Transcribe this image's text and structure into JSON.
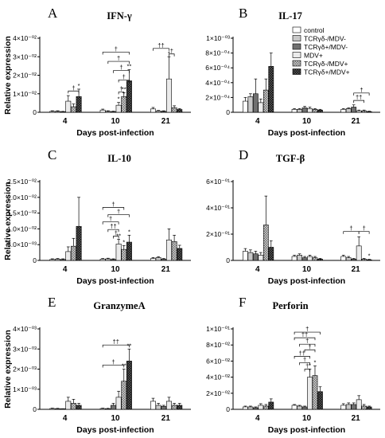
{
  "x_axis_label": "Days post-infection",
  "y_axis_label": "Relative expression",
  "legend": {
    "entries": [
      {
        "label": "control",
        "fill": "#ffffff",
        "pattern": "solid"
      },
      {
        "label": "TCRγδ-/MDV-",
        "fill": "#c8c8c8",
        "pattern": "solid"
      },
      {
        "label": "TCRγδ+/MDV-",
        "fill": "#707070",
        "pattern": "solid"
      },
      {
        "label": "MDV+",
        "fill": "#ebebeb",
        "pattern": "solid"
      },
      {
        "label": "TCRγδ-/MDV+",
        "fill": "#b4b4b4",
        "pattern": "checker"
      },
      {
        "label": "TCRγδ+/MDV+",
        "fill": "#202020",
        "pattern": "checker"
      }
    ]
  },
  "chart_data": [
    {
      "type": "bar",
      "panel": "A",
      "title": "IFN-γ",
      "categories": [
        "4",
        "10",
        "21"
      ],
      "ylim": [
        0,
        0.04
      ],
      "yticks": [
        "0",
        "1×10⁻⁰²",
        "2×10⁻⁰²",
        "3×10⁻⁰²",
        "4×10⁻⁰²"
      ],
      "series": [
        {
          "name": "control",
          "values": [
            0.0005,
            0.0012,
            0.0018
          ],
          "errors": [
            0.0003,
            0.0005,
            0.0008
          ]
        },
        {
          "name": "TCRγδ-/MDV-",
          "values": [
            0.0005,
            0.0005,
            0.0007
          ],
          "errors": [
            0.0003,
            0.0003,
            0.0003
          ]
        },
        {
          "name": "TCRγδ+/MDV-",
          "values": [
            0.0003,
            0.0004,
            0.0005
          ],
          "errors": [
            0.0002,
            0.0002,
            0.0003
          ]
        },
        {
          "name": "MDV+",
          "values": [
            0.006,
            0.0038,
            0.018
          ],
          "errors": [
            0.003,
            0.0015,
            0.012
          ]
        },
        {
          "name": "TCRγδ-/MDV+",
          "values": [
            0.003,
            0.0085,
            0.0025
          ],
          "errors": [
            0.0015,
            0.002,
            0.001
          ]
        },
        {
          "name": "TCRγδ+/MDV+",
          "values": [
            0.0085,
            0.017,
            0.0015
          ],
          "errors": [
            0.004,
            0.006,
            0.0005
          ]
        }
      ],
      "stars": [
        [
          "",
          "",
          ""
        ],
        [
          "",
          "",
          ""
        ],
        [
          "",
          "",
          ""
        ],
        [
          "",
          "*",
          "*"
        ],
        [
          "",
          "**",
          ""
        ],
        [
          "*",
          "**",
          ""
        ]
      ],
      "brackets": [
        {
          "g": 0,
          "from": 3,
          "to": 5,
          "level": 0.0115,
          "label": "†"
        },
        {
          "g": 1,
          "from": 0,
          "to": 5,
          "level": 0.0325,
          "label": "†"
        },
        {
          "g": 1,
          "from": 1,
          "to": 5,
          "level": 0.0275,
          "label": "†"
        },
        {
          "g": 1,
          "from": 2,
          "to": 5,
          "level": 0.0225,
          "label": "†"
        },
        {
          "g": 1,
          "from": 3,
          "to": 5,
          "level": 0.0175,
          "label": "†"
        },
        {
          "g": 1,
          "from": 3,
          "to": 4,
          "level": 0.011,
          "label": "†"
        },
        {
          "g": 2,
          "from": 0,
          "to": 3,
          "level": 0.0345,
          "label": "††"
        },
        {
          "g": 2,
          "from": 3,
          "to": 4,
          "level": 0.0315,
          "label": "†"
        }
      ]
    },
    {
      "type": "bar",
      "panel": "B",
      "title": "IL-17",
      "categories": [
        "4",
        "10",
        "21"
      ],
      "ylim": [
        0,
        0.001
      ],
      "yticks": [
        "0",
        "2×10⁻⁰⁴",
        "4×10⁻⁰⁴",
        "6×10⁻⁰⁴",
        "8×10⁻⁰⁴",
        "1×10⁻⁰³"
      ],
      "series": [
        {
          "name": "control",
          "values": [
            0.00015,
            4e-05,
            4e-05
          ],
          "errors": [
            5e-05,
            1e-05,
            1e-05
          ]
        },
        {
          "name": "TCRγδ-/MDV-",
          "values": [
            0.00021,
            4e-05,
            5e-05
          ],
          "errors": [
            4e-05,
            1e-05,
            1e-05
          ]
        },
        {
          "name": "TCRγδ+/MDV-",
          "values": [
            0.00025,
            6e-05,
            7e-05
          ],
          "errors": [
            0.0002,
            2e-05,
            3e-05
          ]
        },
        {
          "name": "MDV+",
          "values": [
            0.00013,
            5e-05,
            2e-05
          ],
          "errors": [
            5e-05,
            2e-05,
            1e-05
          ]
        },
        {
          "name": "TCRγδ-/MDV+",
          "values": [
            0.0003,
            4e-05,
            2e-05
          ],
          "errors": [
            0.00015,
            1e-05,
            1e-05
          ]
        },
        {
          "name": "TCRγδ+/MDV+",
          "values": [
            0.00062,
            3e-05,
            1e-05
          ],
          "errors": [
            0.00018,
            1e-05,
            5e-06
          ]
        }
      ],
      "stars": [
        [
          "",
          "",
          ""
        ],
        [
          "",
          "",
          ""
        ],
        [
          "",
          "",
          ""
        ],
        [
          "",
          "",
          ""
        ],
        [
          "",
          "",
          ""
        ],
        [
          "",
          "",
          ""
        ]
      ],
      "brackets": [
        {
          "g": 2,
          "from": 2,
          "to": 5,
          "level": 0.00026,
          "label": "†"
        },
        {
          "g": 2,
          "from": 2,
          "to": 4,
          "level": 0.00016,
          "label": "††"
        }
      ]
    },
    {
      "type": "bar",
      "panel": "C",
      "title": "IL-10",
      "categories": [
        "4",
        "10",
        "21"
      ],
      "ylim": [
        0,
        0.025
      ],
      "yticks": [
        "0",
        "5.0×10⁻⁰³",
        "1.0×10⁻⁰²",
        "1.5×10⁻⁰²",
        "2.0×10⁻⁰²",
        "2.5×10⁻⁰²"
      ],
      "series": [
        {
          "name": "control",
          "values": [
            0.0003,
            0.0004,
            0.0006
          ],
          "errors": [
            0.0002,
            0.0002,
            0.0003
          ]
        },
        {
          "name": "TCRγδ-/MDV-",
          "values": [
            0.0004,
            0.0005,
            0.0009
          ],
          "errors": [
            0.0002,
            0.0002,
            0.0003
          ]
        },
        {
          "name": "TCRγδ+/MDV-",
          "values": [
            0.0003,
            0.0003,
            0.0004
          ],
          "errors": [
            0.0002,
            0.0002,
            0.0002
          ]
        },
        {
          "name": "MDV+",
          "values": [
            0.0028,
            0.0052,
            0.0065
          ],
          "errors": [
            0.0015,
            0.0015,
            0.0035
          ]
        },
        {
          "name": "TCRγδ-/MDV+",
          "values": [
            0.0045,
            0.0035,
            0.006
          ],
          "errors": [
            0.0025,
            0.0012,
            0.002
          ]
        },
        {
          "name": "TCRγδ+/MDV+",
          "values": [
            0.0108,
            0.0058,
            0.0038
          ],
          "errors": [
            0.0092,
            0.0022,
            0.001
          ]
        }
      ],
      "stars": [
        [
          "",
          "",
          ""
        ],
        [
          "",
          "",
          ""
        ],
        [
          "",
          "",
          ""
        ],
        [
          "",
          "**",
          ""
        ],
        [
          "",
          "*",
          ""
        ],
        [
          "",
          "*",
          ""
        ]
      ],
      "brackets": [
        {
          "g": 1,
          "from": 0,
          "to": 4,
          "level": 0.0168,
          "label": "†"
        },
        {
          "g": 1,
          "from": 1,
          "to": 5,
          "level": 0.0145,
          "label": "†"
        },
        {
          "g": 1,
          "from": 0,
          "to": 3,
          "level": 0.0122,
          "label": "†"
        },
        {
          "g": 1,
          "from": 1,
          "to": 3,
          "level": 0.0098,
          "label": "††"
        },
        {
          "g": 1,
          "from": 2,
          "to": 3,
          "level": 0.0077,
          "label": "†"
        }
      ]
    },
    {
      "type": "bar",
      "panel": "D",
      "title": "TGF-β",
      "categories": [
        "4",
        "10",
        "21"
      ],
      "ylim": [
        0,
        0.6
      ],
      "yticks": [
        "0",
        "2×10⁻⁰¹",
        "4×10⁻⁰¹",
        "6×10⁻⁰¹"
      ],
      "series": [
        {
          "name": "control",
          "values": [
            0.07,
            0.03,
            0.03
          ],
          "errors": [
            0.02,
            0.01,
            0.01
          ]
        },
        {
          "name": "TCRγδ-/MDV-",
          "values": [
            0.06,
            0.04,
            0.02
          ],
          "errors": [
            0.02,
            0.01,
            0.01
          ]
        },
        {
          "name": "TCRγδ+/MDV-",
          "values": [
            0.05,
            0.02,
            0.01
          ],
          "errors": [
            0.02,
            0.01,
            0.005
          ]
        },
        {
          "name": "MDV+",
          "values": [
            0.04,
            0.03,
            0.11
          ],
          "errors": [
            0.02,
            0.01,
            0.07
          ]
        },
        {
          "name": "TCRγδ-/MDV+",
          "values": [
            0.27,
            0.02,
            0.01
          ],
          "errors": [
            0.22,
            0.01,
            0.005
          ]
        },
        {
          "name": "TCRγδ+/MDV+",
          "values": [
            0.1,
            0.01,
            0.005
          ],
          "errors": [
            0.05,
            0.005,
            0.003
          ]
        }
      ],
      "stars": [
        [
          "",
          "",
          ""
        ],
        [
          "",
          "",
          ""
        ],
        [
          "",
          "",
          ""
        ],
        [
          "",
          "",
          ""
        ],
        [
          "",
          "",
          ""
        ],
        [
          "",
          "",
          "*"
        ]
      ],
      "brackets": [
        {
          "g": 2,
          "from": 0,
          "to": 3,
          "level": 0.22,
          "label": "†"
        },
        {
          "g": 2,
          "from": 3,
          "to": 5,
          "level": 0.22,
          "label": "†"
        }
      ]
    },
    {
      "type": "bar",
      "panel": "E",
      "title": "GranzymeA",
      "categories": [
        "4",
        "10",
        "21"
      ],
      "ylim": [
        0,
        0.004
      ],
      "yticks": [
        "0",
        "1×10⁻⁰³",
        "2×10⁻⁰³",
        "3×10⁻⁰³",
        "4×10⁻⁰³"
      ],
      "series": [
        {
          "name": "control",
          "values": [
            4e-05,
            4e-05,
            0.0004
          ],
          "errors": [
            2e-05,
            2e-05,
            0.00015
          ]
        },
        {
          "name": "TCRγδ-/MDV-",
          "values": [
            3e-05,
            3e-05,
            0.0002
          ],
          "errors": [
            2e-05,
            2e-05,
            0.0001
          ]
        },
        {
          "name": "TCRγδ+/MDV-",
          "values": [
            2e-05,
            0.0002,
            0.00015
          ],
          "errors": [
            1e-05,
            0.0001,
            5e-05
          ]
        },
        {
          "name": "MDV+",
          "values": [
            0.0004,
            0.0006,
            0.0004
          ],
          "errors": [
            0.0002,
            0.0003,
            0.0002
          ]
        },
        {
          "name": "TCRγδ-/MDV+",
          "values": [
            0.0003,
            0.0014,
            0.0002
          ],
          "errors": [
            0.0002,
            0.0006,
            0.0001
          ]
        },
        {
          "name": "TCRγδ+/MDV+",
          "values": [
            0.0002,
            0.0024,
            0.0002
          ],
          "errors": [
            0.0001,
            0.0006,
            0.0001
          ]
        }
      ],
      "stars": [
        [
          "",
          "",
          ""
        ],
        [
          "",
          "",
          ""
        ],
        [
          "",
          "",
          ""
        ],
        [
          "",
          "",
          ""
        ],
        [
          "",
          "**",
          ""
        ],
        [
          "",
          "**",
          ""
        ]
      ],
      "brackets": [
        {
          "g": 1,
          "from": 0,
          "to": 5,
          "level": 0.0032,
          "label": "††"
        },
        {
          "g": 1,
          "from": 0,
          "to": 4,
          "level": 0.0022,
          "label": "†"
        }
      ]
    },
    {
      "type": "bar",
      "panel": "F",
      "title": "Perforin",
      "categories": [
        "4",
        "10",
        "21"
      ],
      "ylim": [
        0,
        0.1
      ],
      "yticks": [
        "0",
        "2×10⁻⁰²",
        "4×10⁻⁰²",
        "6×10⁻⁰²",
        "8×10⁻⁰²",
        "1×10⁻⁰¹"
      ],
      "series": [
        {
          "name": "control",
          "values": [
            0.003,
            0.005,
            0.005
          ],
          "errors": [
            0.001,
            0.001,
            0.002
          ]
        },
        {
          "name": "TCRγδ-/MDV-",
          "values": [
            0.003,
            0.004,
            0.006
          ],
          "errors": [
            0.001,
            0.001,
            0.002
          ]
        },
        {
          "name": "TCRγδ+/MDV-",
          "values": [
            0.002,
            0.003,
            0.006
          ],
          "errors": [
            0.001,
            0.001,
            0.002
          ]
        },
        {
          "name": "MDV+",
          "values": [
            0.005,
            0.04,
            0.012
          ],
          "errors": [
            0.002,
            0.01,
            0.005
          ]
        },
        {
          "name": "TCRγδ-/MDV+",
          "values": [
            0.004,
            0.042,
            0.004
          ],
          "errors": [
            0.002,
            0.012,
            0.002
          ]
        },
        {
          "name": "TCRγδ+/MDV+",
          "values": [
            0.009,
            0.022,
            0.003
          ],
          "errors": [
            0.004,
            0.006,
            0.001
          ]
        }
      ],
      "stars": [
        [
          "",
          "",
          ""
        ],
        [
          "",
          "",
          ""
        ],
        [
          "",
          "",
          ""
        ],
        [
          "",
          "*",
          ""
        ],
        [
          "",
          "*",
          ""
        ],
        [
          "",
          "",
          ""
        ]
      ],
      "brackets": [
        {
          "g": 1,
          "from": 0,
          "to": 5,
          "level": 0.096,
          "label": "†"
        },
        {
          "g": 1,
          "from": 0,
          "to": 4,
          "level": 0.089,
          "label": "††"
        },
        {
          "g": 1,
          "from": 1,
          "to": 4,
          "level": 0.081,
          "label": "†"
        },
        {
          "g": 1,
          "from": 2,
          "to": 4,
          "level": 0.074,
          "label": "†"
        },
        {
          "g": 1,
          "from": 0,
          "to": 3,
          "level": 0.066,
          "label": "††"
        },
        {
          "g": 1,
          "from": 1,
          "to": 3,
          "level": 0.058,
          "label": "†"
        },
        {
          "g": 1,
          "from": 2,
          "to": 3,
          "level": 0.05,
          "label": "†"
        }
      ]
    }
  ]
}
